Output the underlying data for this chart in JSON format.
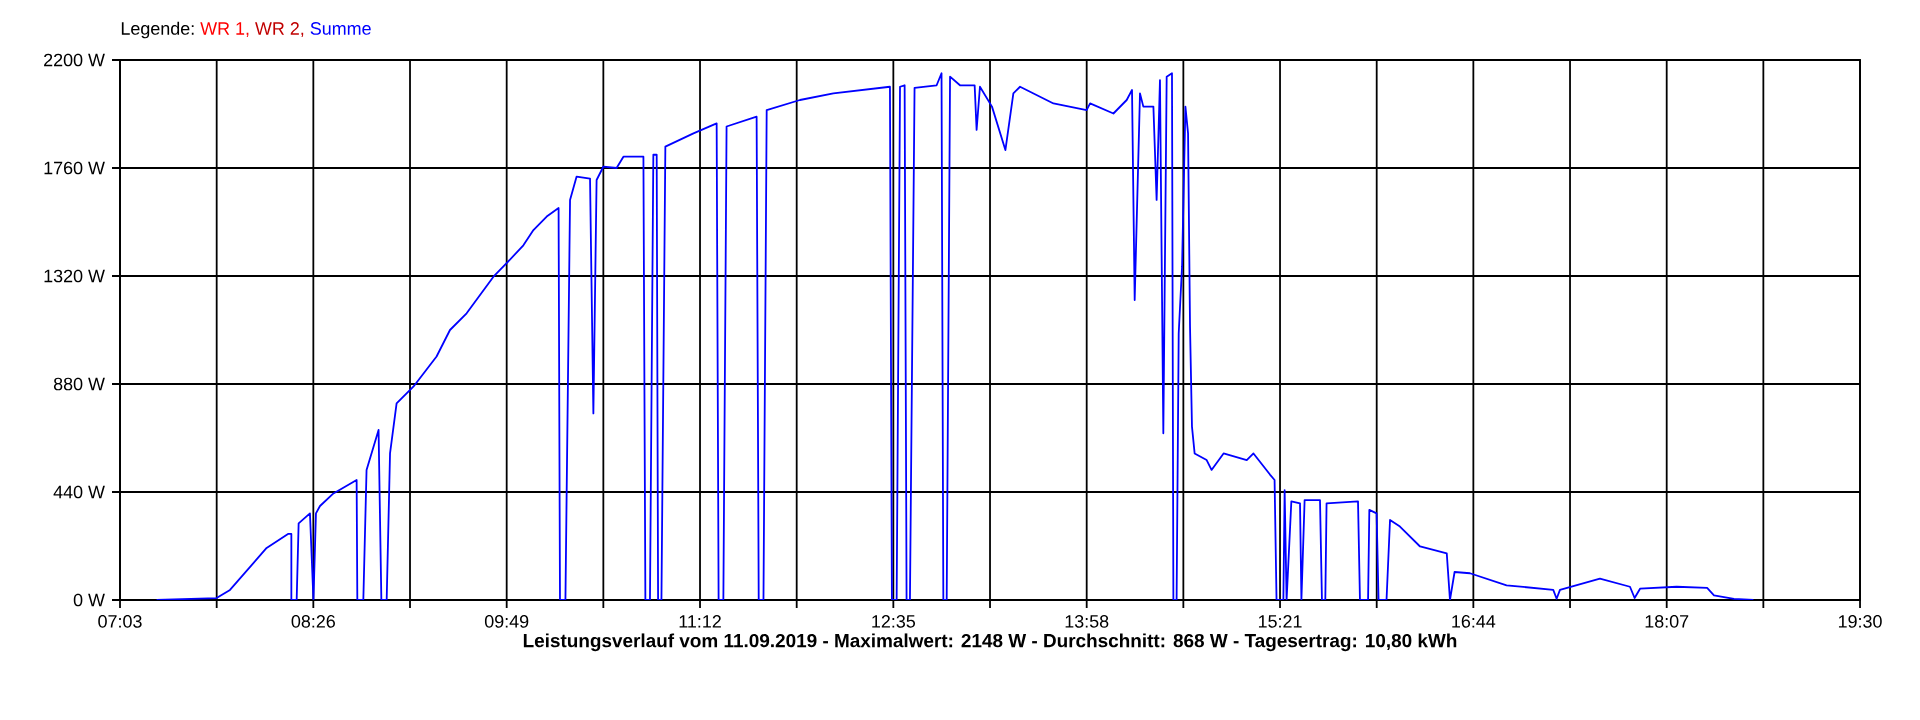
{
  "chart_data": {
    "type": "line",
    "xlabel": "**Leistungsverlauf vom 11.09.2019 - Maximalwert: 2148 W - Durchschnitt: 868 W - Tagesertrag: 10,80 kWh**",
    "legend_title": "Legende:",
    "legend": "top left",
    "grid": true,
    "xlim": [
      7.05,
      19.5
    ],
    "xticks": [
      {
        "value": 7.05,
        "label": "07:03"
      },
      {
        "value": 7.7417,
        "label": null
      },
      {
        "value": 8.4333,
        "label": "08:26"
      },
      {
        "value": 9.125,
        "label": null
      },
      {
        "value": 9.8167,
        "label": "09:49"
      },
      {
        "value": 10.5083,
        "label": null
      },
      {
        "value": 11.2,
        "label": "11:12"
      },
      {
        "value": 11.8917,
        "label": null
      },
      {
        "value": 12.5833,
        "label": "12:35"
      },
      {
        "value": 13.275,
        "label": null
      },
      {
        "value": 13.9667,
        "label": "13:58"
      },
      {
        "value": 14.6583,
        "label": null
      },
      {
        "value": 15.35,
        "label": "15:21"
      },
      {
        "value": 16.0417,
        "label": null
      },
      {
        "value": 16.7333,
        "label": "16:44"
      },
      {
        "value": 17.425,
        "label": null
      },
      {
        "value": 18.1167,
        "label": "18:07"
      },
      {
        "value": 18.8083,
        "label": null
      },
      {
        "value": 19.5,
        "label": "19:30"
      }
    ],
    "ylim": [
      0,
      2200
    ],
    "yticks": [
      {
        "value": 0,
        "label": "0 W"
      },
      {
        "value": 440,
        "label": "440 W"
      },
      {
        "value": 880,
        "label": "880 W"
      },
      {
        "value": 1320,
        "label": "1320 W"
      },
      {
        "value": 1760,
        "label": "1760 W"
      },
      {
        "value": 2200,
        "label": "2200 W"
      }
    ],
    "series": [
      {
        "name": "WR 1,",
        "color": "#ff0000"
      },
      {
        "name": "WR 2,",
        "color": "#c00000"
      },
      {
        "name": "Summe",
        "color": "#0000ff",
        "x": [
          7.312,
          7.741,
          7.837,
          8.099,
          8.252,
          8.276,
          8.276,
          8.314,
          8.328,
          8.409,
          8.434,
          8.452,
          8.481,
          8.577,
          8.743,
          8.748,
          8.791,
          8.814,
          8.9,
          8.92,
          8.958,
          8.982,
          9.029,
          9.149,
          9.315,
          9.411,
          9.53,
          9.722,
          9.816,
          9.936,
          10.008,
          10.103,
          10.188,
          10.198,
          10.237,
          10.27,
          10.317,
          10.413,
          10.437,
          10.46,
          10.509,
          10.603,
          10.652,
          10.795,
          10.809,
          10.842,
          10.866,
          10.89,
          10.9,
          10.924,
          10.952,
          11.153,
          11.319,
          11.333,
          11.367,
          11.39,
          11.605,
          11.62,
          11.654,
          11.677,
          11.915,
          12.154,
          12.559,
          12.573,
          12.607,
          12.631,
          12.664,
          12.678,
          12.702,
          12.735,
          12.893,
          12.928,
          12.941,
          12.965,
          12.989,
          13.06,
          13.165,
          13.179,
          13.203,
          13.289,
          13.385,
          13.442,
          13.49,
          13.729,
          13.966,
          13.991,
          14.158,
          14.253,
          14.291,
          14.31,
          14.348,
          14.372,
          14.444,
          14.467,
          14.491,
          14.515,
          14.539,
          14.577,
          14.587,
          14.61,
          14.625,
          14.649,
          14.673,
          14.692,
          14.706,
          14.72,
          14.739,
          14.825,
          14.86,
          14.946,
          15.112,
          15.16,
          15.278,
          15.311,
          15.325,
          15.374,
          15.383,
          15.397,
          15.431,
          15.493,
          15.503,
          15.526,
          15.636,
          15.65,
          15.674,
          15.683,
          15.908,
          15.922,
          15.98,
          15.989,
          16.041,
          16.055,
          16.112,
          16.137,
          16.208,
          16.352,
          16.543,
          16.566,
          16.599,
          16.709,
          16.971,
          17.305,
          17.329,
          17.353,
          17.639,
          17.854,
          17.887,
          17.926,
          18.188,
          18.406,
          18.455,
          18.598,
          18.737
        ],
        "values": [
          0,
          8,
          41,
          212,
          269,
          269,
          0,
          0,
          312,
          353,
          0,
          353,
          383,
          434,
          489,
          0,
          0,
          530,
          693,
          0,
          0,
          597,
          801,
          869,
          992,
          1100,
          1168,
          1317,
          1372,
          1445,
          1507,
          1562,
          1597,
          0,
          0,
          1630,
          1725,
          1717,
          760,
          1711,
          1766,
          1760,
          1806,
          1806,
          0,
          0,
          1814,
          1814,
          0,
          0,
          1847,
          1901,
          1942,
          0,
          0,
          1929,
          1969,
          0,
          0,
          1996,
          2037,
          2064,
          2091,
          0,
          0,
          2091,
          2097,
          0,
          0,
          2086,
          2097,
          2146,
          0,
          0,
          2132,
          2097,
          2097,
          1915,
          2091,
          2010,
          1833,
          2064,
          2091,
          2023,
          1996,
          2023,
          1982,
          2037,
          2078,
          1222,
          2064,
          2010,
          2010,
          1630,
          2118,
          679,
          2132,
          2146,
          0,
          0,
          1086,
          1358,
          2010,
          1901,
          1114,
          706,
          597,
          570,
          530,
          597,
          570,
          597,
          511,
          489,
          0,
          0,
          448,
          0,
          402,
          394,
          0,
          407,
          407,
          0,
          0,
          394,
          402,
          0,
          0,
          367,
          353,
          0,
          0,
          326,
          299,
          218,
          190,
          0,
          114,
          109,
          60,
          41,
          5,
          41,
          87,
          54,
          8,
          46,
          54,
          49,
          19,
          5,
          0
        ]
      }
    ]
  }
}
